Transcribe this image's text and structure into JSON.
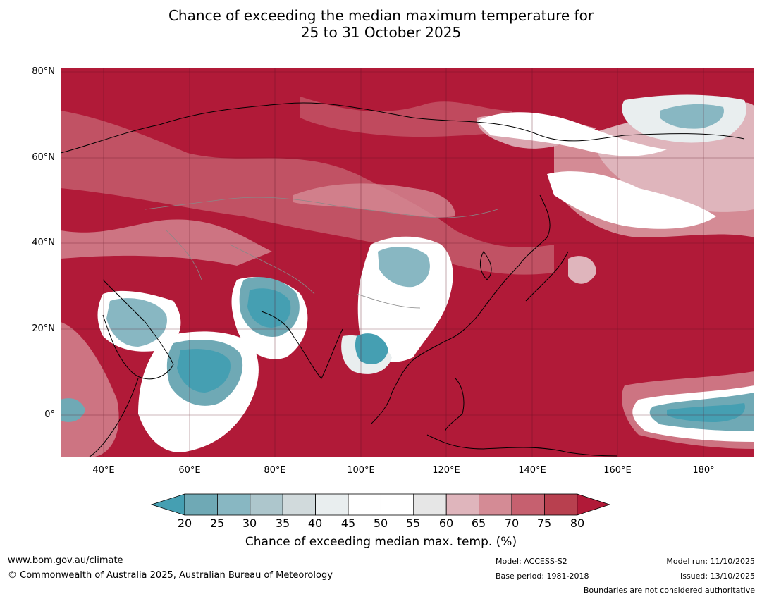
{
  "title_line1": "Chance of exceeding the median maximum temperature for",
  "title_line2": "25 to 31 October 2025",
  "map": {
    "lat_labels": [
      "80°N",
      "60°N",
      "40°N",
      "20°N",
      "0°"
    ],
    "lon_labels": [
      "40°E",
      "60°E",
      "80°E",
      "100°E",
      "120°E",
      "140°E",
      "160°E",
      "180°"
    ],
    "extent": {
      "lon_min": 30,
      "lon_max": 192,
      "lat_min": -10,
      "lat_max": 81
    }
  },
  "colorbar": {
    "ticks": [
      "20",
      "25",
      "30",
      "35",
      "40",
      "45",
      "50",
      "55",
      "60",
      "65",
      "70",
      "75",
      "80"
    ],
    "colors": [
      "#6fa9b5",
      "#88b7c2",
      "#adc6cc",
      "#d1dadc",
      "#e9eeef",
      "#ffffff",
      "#ffffff",
      "#e6e6e6",
      "#dfb5bc",
      "#d48b95",
      "#c6606f",
      "#b8404f"
    ],
    "under_color": "#459fb2",
    "over_color": "#b11a38",
    "label": "Chance of exceeding median max. temp. (%)"
  },
  "footer": {
    "url": "www.bom.gov.au/climate",
    "copyright": "© Commonwealth of Australia 2025, Australian Bureau of Meteorology",
    "model": "Model: ACCESS-S2",
    "base_period": "Base period: 1981-2018",
    "model_run": "Model run: 11/10/2025",
    "issued": "Issued: 13/10/2025",
    "boundaries": "Boundaries are not considered authoritative"
  }
}
